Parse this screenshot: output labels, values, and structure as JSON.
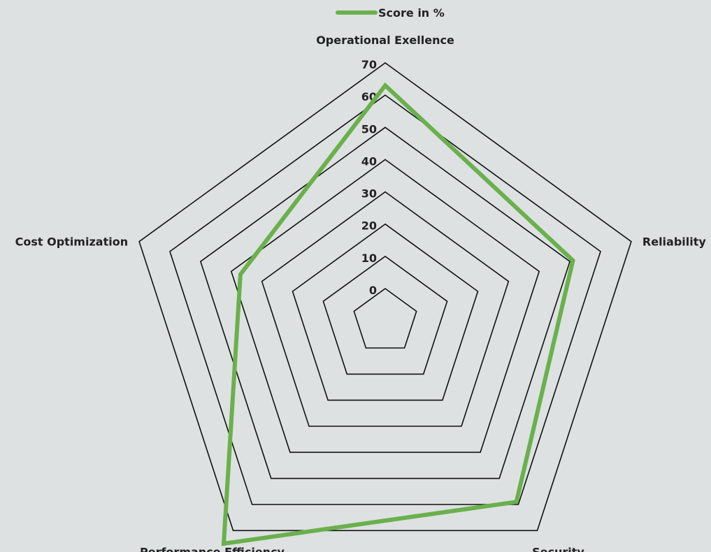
{
  "chart_data": {
    "type": "radar",
    "title": "",
    "categories": [
      "Operational Exellence",
      "Reliability",
      "Security",
      "Performance Efficiency",
      "Cost Optimization"
    ],
    "series": [
      {
        "name": "Score in %",
        "values": [
          63,
          51,
          59,
          75,
          37
        ],
        "color": "#6ab04c"
      }
    ],
    "rlim": [
      0,
      70
    ],
    "ticks": [
      0,
      10,
      20,
      30,
      40,
      50,
      60,
      70
    ],
    "ticks_visible": [
      "0",
      "10",
      "20",
      "30",
      "40",
      "50",
      "60",
      "70"
    ],
    "grid": true,
    "legend_position": "top"
  }
}
